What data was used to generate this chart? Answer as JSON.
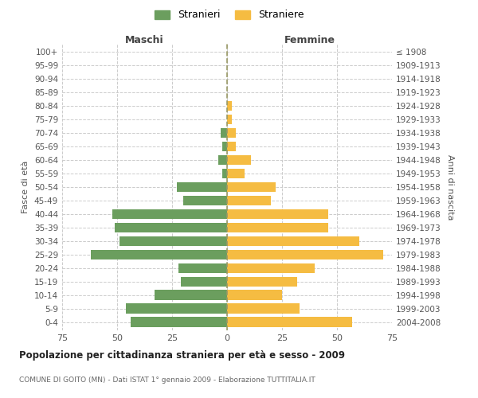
{
  "age_groups": [
    "100+",
    "95-99",
    "90-94",
    "85-89",
    "80-84",
    "75-79",
    "70-74",
    "65-69",
    "60-64",
    "55-59",
    "50-54",
    "45-49",
    "40-44",
    "35-39",
    "30-34",
    "25-29",
    "20-24",
    "15-19",
    "10-14",
    "5-9",
    "0-4"
  ],
  "birth_years": [
    "≤ 1908",
    "1909-1913",
    "1914-1918",
    "1919-1923",
    "1924-1928",
    "1929-1933",
    "1934-1938",
    "1939-1943",
    "1944-1948",
    "1949-1953",
    "1954-1958",
    "1959-1963",
    "1964-1968",
    "1969-1973",
    "1974-1978",
    "1979-1983",
    "1984-1988",
    "1989-1993",
    "1994-1998",
    "1999-2003",
    "2004-2008"
  ],
  "males": [
    0,
    0,
    0,
    0,
    0,
    0,
    3,
    2,
    4,
    2,
    23,
    20,
    52,
    51,
    49,
    62,
    22,
    21,
    33,
    46,
    44
  ],
  "females": [
    0,
    0,
    0,
    0,
    2,
    2,
    4,
    4,
    11,
    8,
    22,
    20,
    46,
    46,
    60,
    71,
    40,
    32,
    25,
    33,
    57
  ],
  "male_color": "#6b9e5e",
  "female_color": "#f5bc42",
  "background_color": "#ffffff",
  "grid_color": "#cccccc",
  "title": "Popolazione per cittadinanza straniera per età e sesso - 2009",
  "subtitle": "COMUNE DI GOITO (MN) - Dati ISTAT 1° gennaio 2009 - Elaborazione TUTTITALIA.IT",
  "header_left": "Maschi",
  "header_right": "Femmine",
  "ylabel_left": "Fasce di età",
  "ylabel_right": "Anni di nascita",
  "legend_male": "Stranieri",
  "legend_female": "Straniere",
  "xlim": 75,
  "bar_height": 0.75
}
